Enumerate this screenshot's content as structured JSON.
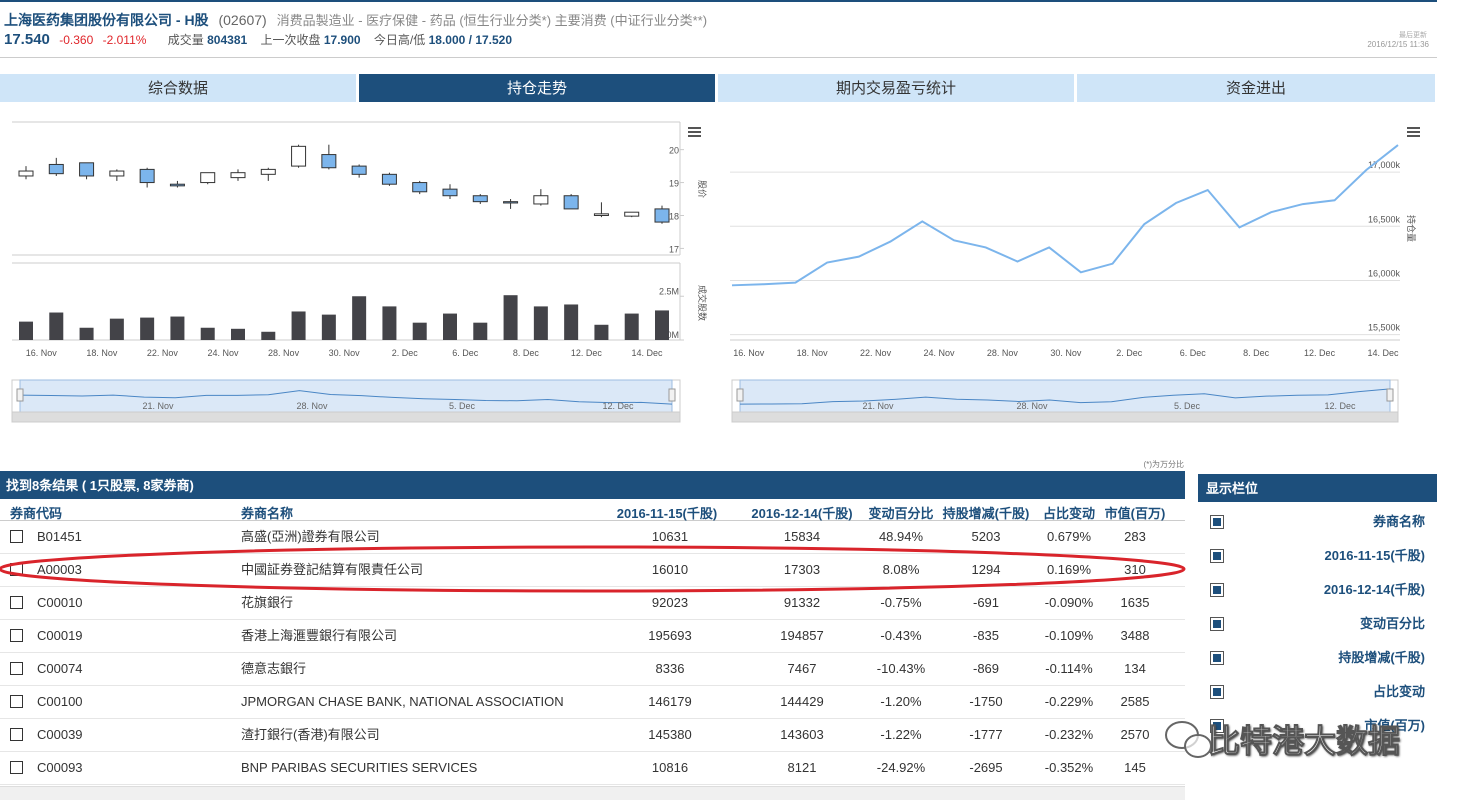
{
  "header": {
    "title": "上海医药集团股份有限公司 - H股",
    "code": "(02607)",
    "industry": "消费品製造业 - 医疗保健 - 药品 (恒生行业分类*) 主要消费 (中证行业分类**)",
    "price": "17.540",
    "change": "-0.360",
    "change_pct": "-2.011%",
    "volume_label": "成交量",
    "volume": "804381",
    "prev_close_label": "上一次收盘",
    "prev_close": "17.900",
    "high_low_label": "今日高/低",
    "high_low": "18.000 / 17.520",
    "updated_label": "最后更新",
    "updated": "2016/12/15 11:36"
  },
  "tabs": [
    "综合数据",
    "持仓走势",
    "期内交易盈亏统计",
    "资金进出"
  ],
  "active_tab": 1,
  "stock_chart": {
    "type": "candlestick",
    "categories": [
      null,
      "16. Nov",
      null,
      "18. Nov",
      null,
      "22. Nov",
      null,
      "24. Nov",
      null,
      "28. Nov",
      null,
      "30. Nov",
      null,
      "2. Dec",
      null,
      "6. Dec",
      null,
      "8. Dec",
      null,
      "12. Dec",
      null,
      "14. Dec"
    ],
    "open": [
      19.2,
      19.55,
      19.6,
      19.2,
      19.4,
      18.95,
      19.0,
      19.15,
      19.25,
      19.5,
      19.85,
      19.5,
      19.25,
      19.0,
      18.8,
      18.6,
      18.42,
      18.35,
      18.6,
      18.0,
      17.98,
      18.2
    ],
    "high": [
      19.5,
      19.75,
      19.6,
      19.4,
      19.45,
      19.05,
      19.3,
      19.4,
      19.45,
      20.15,
      20.15,
      19.55,
      19.3,
      19.05,
      18.95,
      18.65,
      18.5,
      18.8,
      18.65,
      18.4,
      18.1,
      18.3
    ],
    "low": [
      19.1,
      19.2,
      19.1,
      19.05,
      18.85,
      18.85,
      18.95,
      19.05,
      19.05,
      19.45,
      19.4,
      19.15,
      18.9,
      18.65,
      18.5,
      18.35,
      18.2,
      18.3,
      18.2,
      17.95,
      17.95,
      17.75
    ],
    "close": [
      19.35,
      19.27,
      19.2,
      19.35,
      19.0,
      18.9,
      19.3,
      19.3,
      19.4,
      20.1,
      19.45,
      19.25,
      18.95,
      18.72,
      18.6,
      18.42,
      18.38,
      18.6,
      18.2,
      18.05,
      18.1,
      17.8
    ],
    "up_color": "#ffffff",
    "down_color": "#7cb5ec",
    "ylim": [
      16.8,
      20.9
    ],
    "yticks": [
      17,
      18,
      19,
      20
    ],
    "y_label": "股价",
    "volume": [
      1050000,
      1570000,
      700000,
      1220000,
      1280000,
      1340000,
      700000,
      640000,
      470000,
      1630000,
      1450000,
      2500000,
      1920000,
      990000,
      1510000,
      990000,
      2560000,
      1920000,
      2030000,
      870000,
      1510000,
      1690000
    ],
    "volume_color": "#434348",
    "volume_ylim": [
      0,
      4400000
    ],
    "volume_yticks": [
      {
        "value": 0,
        "label": "0M"
      },
      {
        "value": 2500000,
        "label": "2.5M"
      }
    ],
    "volume_label": "成交股数"
  },
  "holdings_chart": {
    "type": "line",
    "categories": [
      null,
      "16. Nov",
      null,
      "18. Nov",
      null,
      "22. Nov",
      null,
      "24. Nov",
      null,
      "28. Nov",
      null,
      "30. Nov",
      null,
      "2. Dec",
      null,
      "6. Dec",
      null,
      "8. Dec",
      null,
      "12. Dec",
      null,
      "14. Dec"
    ],
    "values": [
      15955,
      15965,
      15980,
      16165,
      16220,
      16360,
      16545,
      16370,
      16305,
      16175,
      16305,
      16075,
      16155,
      16520,
      16715,
      16835,
      16490,
      16630,
      16705,
      16740,
      17020,
      17250
    ],
    "color": "#7cb5ec",
    "ylim": [
      15450,
      17500
    ],
    "yticks": [
      {
        "value": 15500,
        "label": "15,500k"
      },
      {
        "value": 16000,
        "label": "16,000k"
      },
      {
        "value": 16500,
        "label": "16,500k"
      },
      {
        "value": 17000,
        "label": "17,000k"
      }
    ],
    "grid": true,
    "y_label": "持仓量"
  },
  "navigator_labels": [
    "21. Nov",
    "28. Nov",
    "5. Dec",
    "12. Dec"
  ],
  "table": {
    "title": "找到8条结果 ( 1只股票, 8家券商)",
    "note": "(*)为万分比",
    "columns": [
      "券商代码",
      "券商名称",
      "2016-11-15(千股)",
      "2016-12-14(千股)",
      "变动百分比",
      "持股增减(千股)",
      "占比变动",
      "市值(百万)"
    ],
    "rows": [
      [
        "B01451",
        "高盛(亞洲)證券有限公司",
        "10631",
        "15834",
        "48.94%",
        "5203",
        "0.679%",
        "283"
      ],
      [
        "A00003",
        "中國証券登記結算有限責任公司",
        "16010",
        "17303",
        "8.08%",
        "1294",
        "0.169%",
        "310"
      ],
      [
        "C00010",
        "花旗銀行",
        "92023",
        "91332",
        "-0.75%",
        "-691",
        "-0.090%",
        "1635"
      ],
      [
        "C00019",
        "香港上海滙豐銀行有限公司",
        "195693",
        "194857",
        "-0.43%",
        "-835",
        "-0.109%",
        "3488"
      ],
      [
        "C00074",
        "德意志銀行",
        "8336",
        "7467",
        "-10.43%",
        "-869",
        "-0.114%",
        "134"
      ],
      [
        "C00100",
        "JPMORGAN CHASE BANK, NATIONAL ASSOCIATION",
        "146179",
        "144429",
        "-1.20%",
        "-1750",
        "-0.229%",
        "2585"
      ],
      [
        "C00039",
        "渣打銀行(香港)有限公司",
        "145380",
        "143603",
        "-1.22%",
        "-1777",
        "-0.232%",
        "2570"
      ],
      [
        "C00093",
        "BNP PARIBAS SECURITIES SERVICES",
        "10816",
        "8121",
        "-24.92%",
        "-2695",
        "-0.352%",
        "145"
      ]
    ]
  },
  "side_panel": {
    "title": "显示栏位",
    "items": [
      "券商名称",
      "2016-11-15(千股)",
      "2016-12-14(千股)",
      "变动百分比",
      "持股增减(千股)",
      "占比变动",
      "市值(百万)"
    ]
  },
  "watermark": "比特港大数据"
}
